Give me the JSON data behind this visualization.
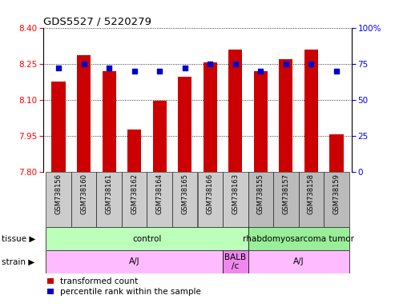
{
  "title": "GDS5527 / 5220279",
  "samples": [
    "GSM738156",
    "GSM738160",
    "GSM738161",
    "GSM738162",
    "GSM738164",
    "GSM738165",
    "GSM738166",
    "GSM738163",
    "GSM738155",
    "GSM738157",
    "GSM738158",
    "GSM738159"
  ],
  "bar_values": [
    8.175,
    8.285,
    8.22,
    7.975,
    8.095,
    8.195,
    8.255,
    8.31,
    8.22,
    8.27,
    8.31,
    7.955
  ],
  "dot_values": [
    72,
    75,
    72,
    70,
    70,
    72,
    75,
    75,
    70,
    75,
    75,
    70
  ],
  "ylim_left": [
    7.8,
    8.4
  ],
  "ylim_right": [
    0,
    100
  ],
  "yticks_left": [
    7.8,
    7.95,
    8.1,
    8.25,
    8.4
  ],
  "yticks_right": [
    0,
    25,
    50,
    75,
    100
  ],
  "bar_color": "#cc0000",
  "dot_color": "#0000cc",
  "tissue_groups": [
    {
      "label": "control",
      "start": 0,
      "end": 8,
      "color": "#bbffbb"
    },
    {
      "label": "rhabdomyosarcoma tumor",
      "start": 8,
      "end": 12,
      "color": "#99ee99"
    }
  ],
  "strain_groups": [
    {
      "label": "A/J",
      "start": 0,
      "end": 7,
      "color": "#ffbbff"
    },
    {
      "label": "BALB\n/c",
      "start": 7,
      "end": 8,
      "color": "#ee88ee"
    },
    {
      "label": "A/J",
      "start": 8,
      "end": 12,
      "color": "#ffbbff"
    }
  ],
  "tick_bg_even": "#cccccc",
  "tick_bg_odd": "#bbbbbb",
  "n_control": 8,
  "legend_red_label": "transformed count",
  "legend_blue_label": "percentile rank within the sample",
  "tissue_label": "tissue",
  "strain_label": "strain"
}
